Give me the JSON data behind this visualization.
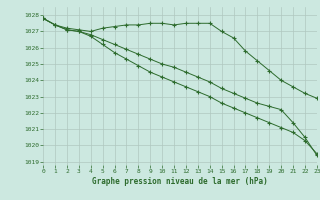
{
  "xlabel": "Graphe pression niveau de la mer (hPa)",
  "bg_color": "#cce8e0",
  "grid_color": "#b0c8c0",
  "line_color": "#2d6b2d",
  "ylim": [
    1018.8,
    1028.5
  ],
  "xlim": [
    0,
    23
  ],
  "yticks": [
    1019,
    1020,
    1021,
    1022,
    1023,
    1024,
    1025,
    1026,
    1027,
    1028
  ],
  "xticks": [
    0,
    1,
    2,
    3,
    4,
    5,
    6,
    7,
    8,
    9,
    10,
    11,
    12,
    13,
    14,
    15,
    16,
    17,
    18,
    19,
    20,
    21,
    22,
    23
  ],
  "series1": [
    1027.8,
    1027.4,
    1027.2,
    1027.1,
    1027.0,
    1027.2,
    1027.3,
    1027.4,
    1027.4,
    1027.5,
    1027.5,
    1027.4,
    1027.5,
    1027.5,
    1027.5,
    1027.0,
    1026.6,
    1025.8,
    1025.2,
    1024.6,
    1024.0,
    1023.6,
    1023.2,
    1022.9
  ],
  "series2": [
    1027.8,
    1027.4,
    1027.1,
    1027.0,
    1026.8,
    1026.5,
    1026.2,
    1025.9,
    1025.6,
    1025.3,
    1025.0,
    1024.8,
    1024.5,
    1024.2,
    1023.9,
    1023.5,
    1023.2,
    1022.9,
    1022.6,
    1022.4,
    1022.2,
    1021.4,
    1020.5,
    1019.4
  ],
  "series3": [
    1027.8,
    1027.4,
    1027.1,
    1027.0,
    1026.7,
    1026.2,
    1025.7,
    1025.3,
    1024.9,
    1024.5,
    1024.2,
    1023.9,
    1023.6,
    1023.3,
    1023.0,
    1022.6,
    1022.3,
    1022.0,
    1021.7,
    1021.4,
    1021.1,
    1020.8,
    1020.3,
    1019.5
  ]
}
